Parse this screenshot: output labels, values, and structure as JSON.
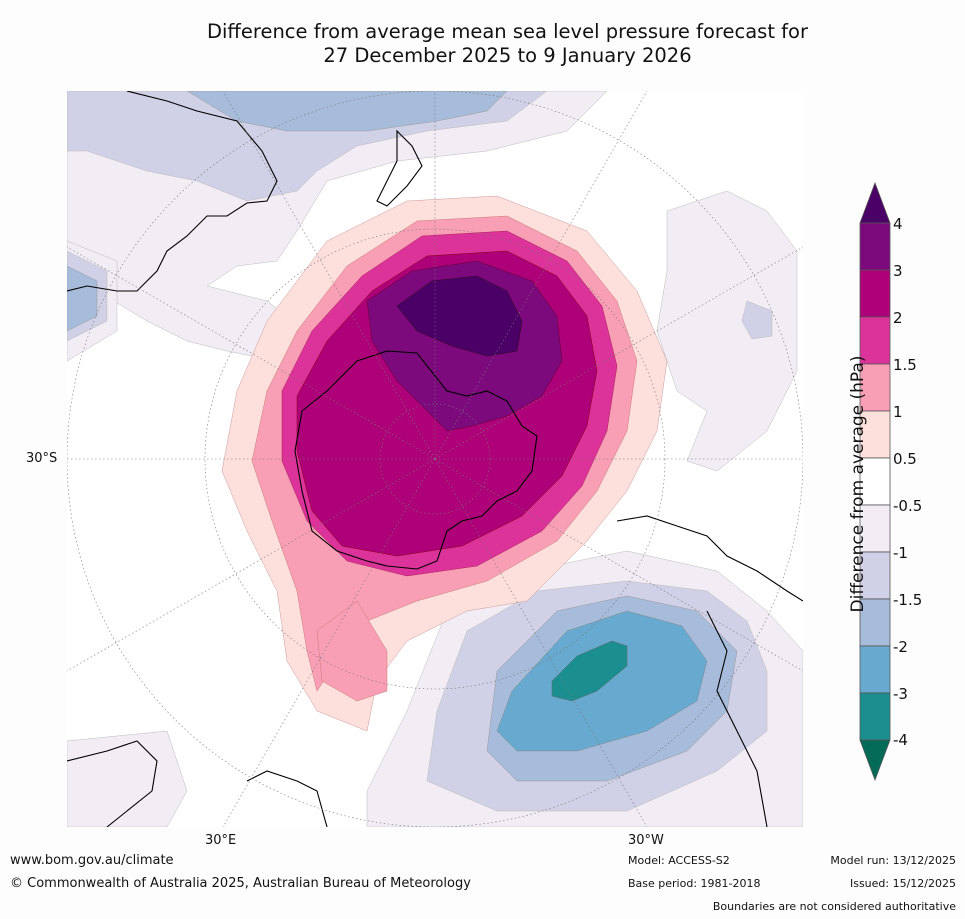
{
  "title": {
    "line1": "Difference from average mean sea level pressure forecast for",
    "line2": "27 December 2025 to 9 January 2026"
  },
  "map": {
    "projection": "south-polar-stereographic",
    "labels": {
      "lat_30s": "30°S",
      "lon_30e": "30°E",
      "lon_30w": "30°W"
    }
  },
  "colorbar": {
    "title": "Difference from average (hPa)",
    "ticks": [
      "4",
      "3",
      "2",
      "1.5",
      "1",
      "0.5",
      "-0.5",
      "-1",
      "-1.5",
      "-2",
      "-3",
      "-4"
    ],
    "colors_top_to_bottom": [
      "#4b0068",
      "#7c0a7c",
      "#ad0079",
      "#db3399",
      "#f89fb6",
      "#fde0dc",
      "#ffffff",
      "#f2ecf5",
      "#d0d0e6",
      "#a7bbdb",
      "#67a9cf",
      "#1b8f90",
      "#036b58"
    ]
  },
  "footer": {
    "url": "www.bom.gov.au/climate",
    "copyright": "© Commonwealth of Australia 2025, Australian Bureau of Meteorology",
    "model": "Model: ACCESS-S2",
    "base_period": "Base period: 1981-2018",
    "model_run": "Model run: 13/12/2025",
    "issued": "Issued: 15/12/2025",
    "disclaimer": "Boundaries are not considered authoritative"
  }
}
